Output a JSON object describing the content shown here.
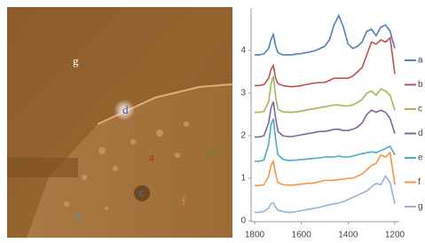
{
  "image_labels": [
    "g",
    "d",
    "a",
    "b",
    "c",
    "e",
    "f"
  ],
  "chart_data": {
    "type": "line",
    "x": [
      1800,
      1780,
      1760,
      1740,
      1730,
      1720,
      1710,
      1700,
      1680,
      1660,
      1640,
      1620,
      1600,
      1580,
      1560,
      1540,
      1520,
      1500,
      1480,
      1460,
      1440,
      1420,
      1400,
      1380,
      1360,
      1340,
      1320,
      1300,
      1280,
      1260,
      1240,
      1220,
      1200
    ],
    "xlim": [
      1800,
      1200
    ],
    "xticks": [
      1800,
      1600,
      1400,
      1200
    ],
    "ylim": [
      0,
      5
    ],
    "yticks": [
      0,
      1,
      2,
      3,
      4
    ],
    "series": [
      {
        "name": "a",
        "color": "#4f81bd",
        "values": [
          3.9,
          3.9,
          3.92,
          4.05,
          4.25,
          4.38,
          4.1,
          3.95,
          3.9,
          3.9,
          3.9,
          3.92,
          3.93,
          3.95,
          3.97,
          4.0,
          4.05,
          4.1,
          4.25,
          4.6,
          4.82,
          4.55,
          4.15,
          4.05,
          4.1,
          4.2,
          4.45,
          4.5,
          4.35,
          4.55,
          4.6,
          4.45,
          4.05
        ]
      },
      {
        "name": "b",
        "color": "#c0504d",
        "values": [
          3.18,
          3.18,
          3.2,
          3.35,
          3.55,
          3.65,
          3.35,
          3.22,
          3.18,
          3.16,
          3.15,
          3.16,
          3.18,
          3.2,
          3.22,
          3.24,
          3.25,
          3.25,
          3.3,
          3.35,
          3.35,
          3.35,
          3.35,
          3.4,
          3.5,
          3.6,
          3.9,
          4.2,
          4.15,
          4.25,
          4.2,
          4.3,
          3.45
        ]
      },
      {
        "name": "c",
        "color": "#9bbb59",
        "values": [
          2.55,
          2.55,
          2.57,
          2.8,
          3.2,
          3.4,
          2.9,
          2.62,
          2.56,
          2.55,
          2.55,
          2.56,
          2.58,
          2.6,
          2.62,
          2.64,
          2.66,
          2.68,
          2.7,
          2.72,
          2.72,
          2.7,
          2.7,
          2.72,
          2.78,
          2.85,
          3.0,
          3.05,
          2.95,
          3.1,
          3.05,
          2.95,
          2.6
        ]
      },
      {
        "name": "d",
        "color": "#8064a2",
        "values": [
          1.97,
          1.97,
          2.0,
          2.3,
          2.65,
          2.8,
          2.4,
          2.1,
          2.0,
          1.98,
          1.98,
          2.0,
          2.02,
          2.04,
          2.06,
          2.08,
          2.1,
          2.1,
          2.12,
          2.15,
          2.15,
          2.12,
          2.12,
          2.15,
          2.2,
          2.3,
          2.5,
          2.6,
          2.55,
          2.6,
          2.55,
          2.4,
          2.05
        ]
      },
      {
        "name": "e",
        "color": "#4bacc6",
        "values": [
          1.4,
          1.4,
          1.43,
          1.8,
          2.25,
          2.4,
          1.9,
          1.55,
          1.45,
          1.42,
          1.42,
          1.43,
          1.44,
          1.45,
          1.46,
          1.47,
          1.48,
          1.5,
          1.5,
          1.5,
          1.52,
          1.5,
          1.5,
          1.52,
          1.55,
          1.58,
          1.6,
          1.62,
          1.6,
          1.65,
          1.7,
          1.75,
          1.55
        ]
      },
      {
        "name": "f",
        "color": "#f79646",
        "values": [
          0.83,
          0.83,
          0.85,
          1.05,
          1.3,
          1.4,
          1.1,
          0.9,
          0.85,
          0.84,
          0.84,
          0.85,
          0.86,
          0.88,
          0.88,
          0.9,
          0.92,
          0.95,
          0.95,
          0.95,
          0.97,
          0.98,
          1.0,
          1.0,
          1.05,
          1.1,
          1.2,
          1.3,
          1.35,
          1.55,
          1.5,
          1.6,
          0.85
        ]
      },
      {
        "name": "g",
        "color": "#95b3d7",
        "values": [
          0.2,
          0.2,
          0.22,
          0.3,
          0.4,
          0.42,
          0.32,
          0.25,
          0.22,
          0.2,
          0.2,
          0.22,
          0.24,
          0.26,
          0.28,
          0.3,
          0.32,
          0.35,
          0.38,
          0.4,
          0.42,
          0.45,
          0.5,
          0.55,
          0.6,
          0.65,
          0.7,
          0.8,
          0.88,
          0.85,
          1.05,
          0.9,
          0.4
        ]
      }
    ]
  }
}
